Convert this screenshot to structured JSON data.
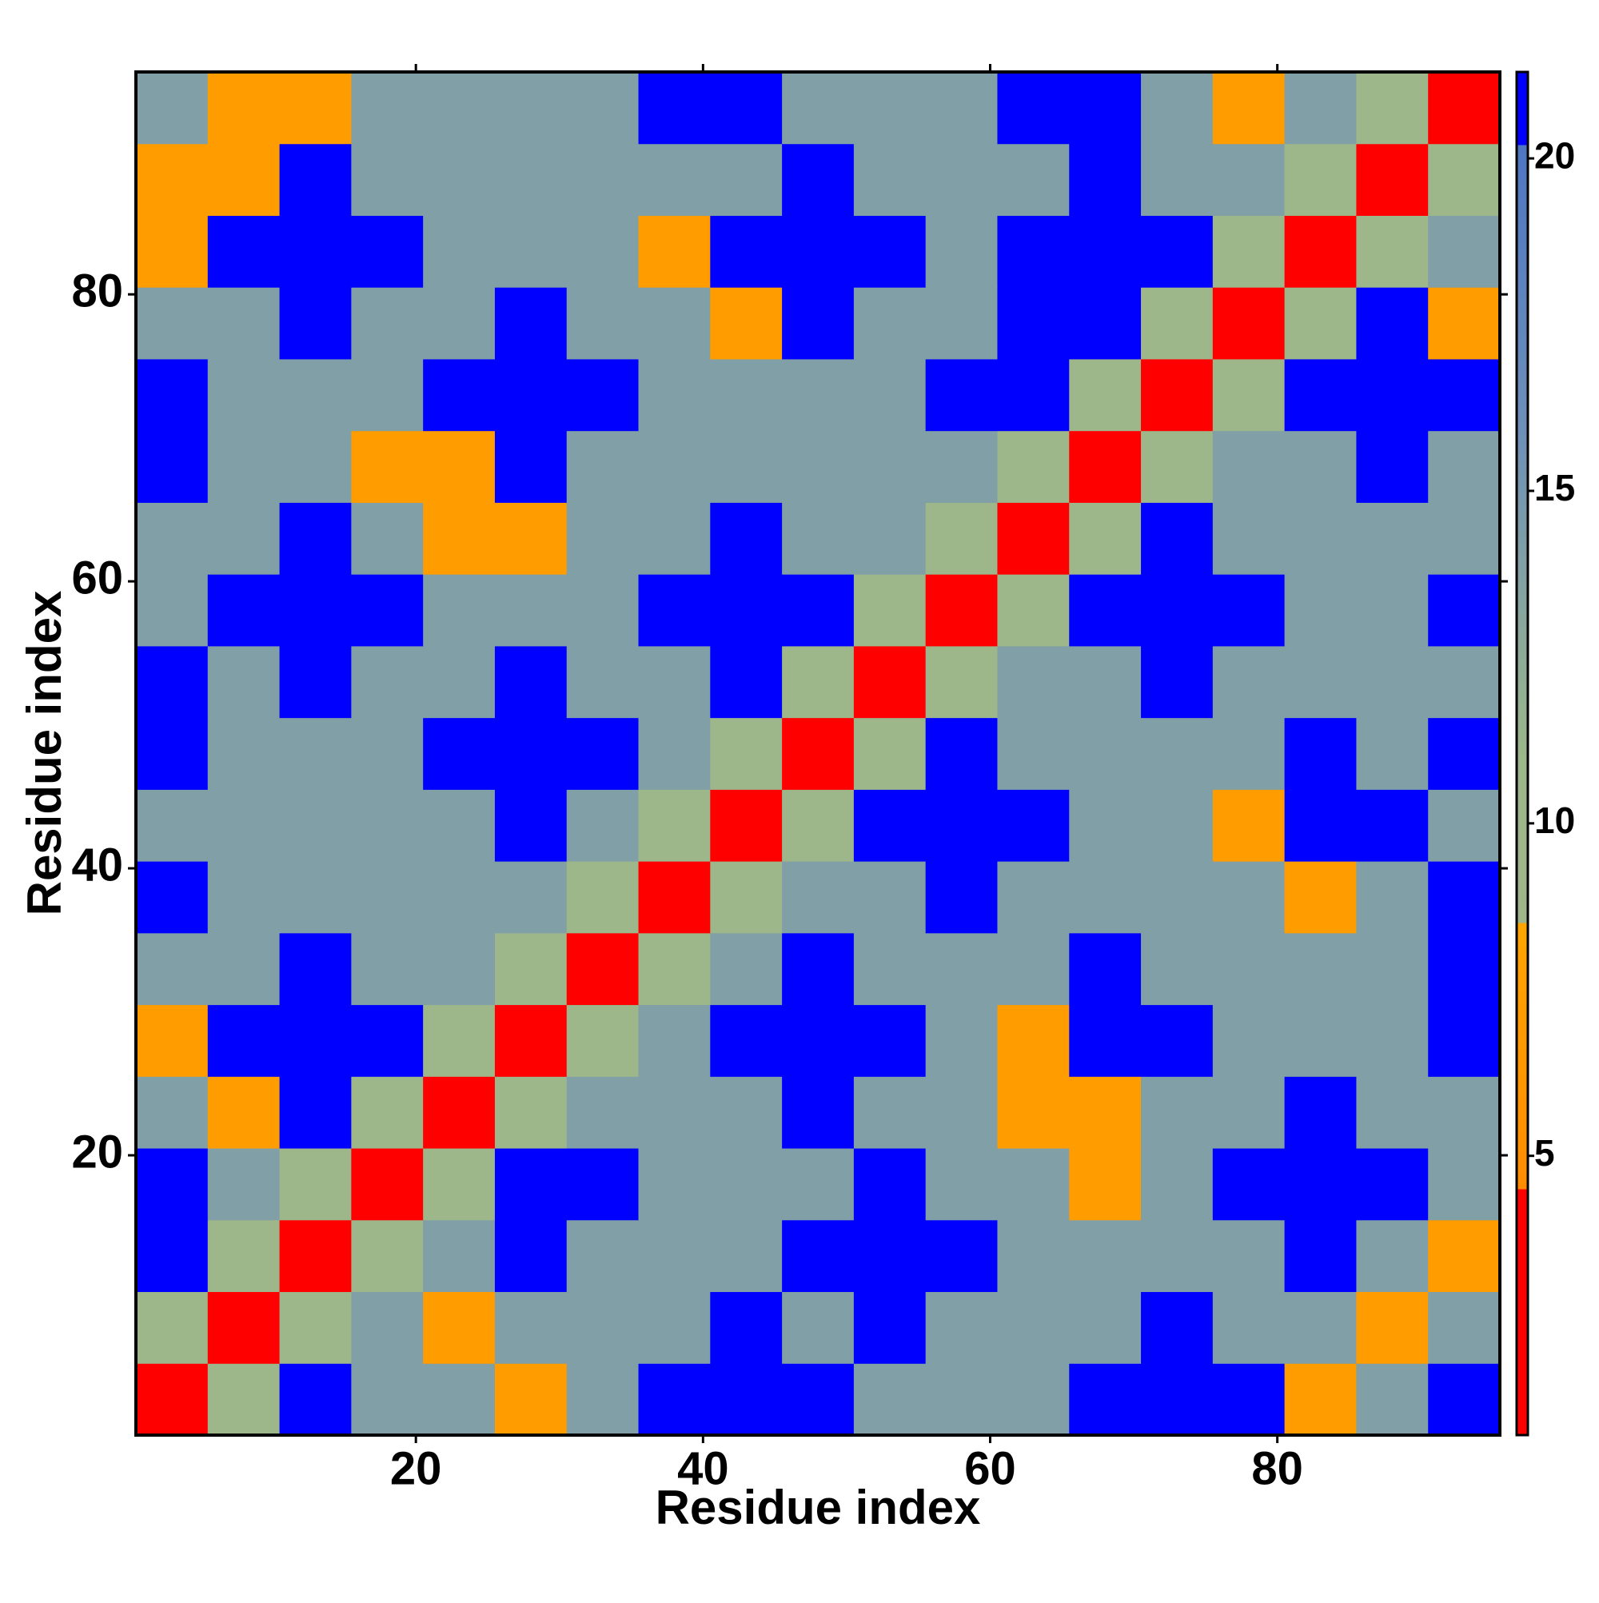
{
  "chart_data": {
    "type": "heatmap",
    "xlabel": "Residue index",
    "ylabel": "Residue index",
    "xbins": [
      0.5,
      5.5,
      10.5,
      15.5,
      20.5,
      25.5,
      30.5,
      35.5,
      40.5,
      45.5,
      50.5,
      55.5,
      60.5,
      65.5,
      70.5,
      75.5,
      80.5,
      85.5,
      90.5,
      95.5
    ],
    "ybins": [
      0.5,
      5.5,
      10.5,
      15.5,
      20.5,
      25.5,
      30.5,
      35.5,
      40.5,
      45.5,
      50.5,
      55.5,
      60.5,
      65.5,
      70.5,
      75.5,
      80.5,
      85.5,
      90.5,
      95.5
    ],
    "xlim": [
      0.5,
      95.5
    ],
    "ylim": [
      0.5,
      95.5
    ],
    "xticks": [
      20,
      40,
      60,
      80
    ],
    "yticks": [
      20,
      40,
      60,
      80
    ],
    "z": [
      [
        3,
        10,
        21,
        14,
        14,
        7,
        14,
        21,
        21,
        21,
        14,
        14,
        14,
        21,
        21,
        21,
        7,
        14,
        21
      ],
      [
        10,
        3,
        10,
        14,
        7,
        14,
        14,
        14,
        21,
        14,
        21,
        14,
        14,
        14,
        21,
        14,
        14,
        7,
        14
      ],
      [
        21,
        10,
        3,
        10,
        14,
        21,
        14,
        14,
        14,
        21,
        21,
        21,
        14,
        14,
        14,
        14,
        21,
        14,
        7
      ],
      [
        21,
        14,
        10,
        3,
        10,
        21,
        21,
        14,
        14,
        14,
        21,
        14,
        14,
        7,
        14,
        21,
        21,
        21,
        14
      ],
      [
        14,
        7,
        21,
        10,
        3,
        10,
        14,
        14,
        14,
        21,
        14,
        14,
        7,
        7,
        14,
        14,
        21,
        14,
        14
      ],
      [
        7,
        21,
        21,
        21,
        10,
        3,
        10,
        14,
        21,
        21,
        21,
        14,
        7,
        21,
        21,
        14,
        14,
        14,
        21
      ],
      [
        14,
        14,
        21,
        14,
        14,
        10,
        3,
        10,
        14,
        21,
        14,
        14,
        14,
        21,
        14,
        14,
        14,
        14,
        21
      ],
      [
        21,
        14,
        14,
        14,
        14,
        14,
        10,
        3,
        10,
        14,
        14,
        21,
        14,
        14,
        14,
        14,
        7,
        14,
        21
      ],
      [
        14,
        14,
        14,
        14,
        14,
        21,
        14,
        10,
        3,
        10,
        21,
        21,
        21,
        14,
        14,
        7,
        21,
        21,
        14
      ],
      [
        21,
        14,
        14,
        14,
        21,
        21,
        21,
        14,
        10,
        3,
        10,
        21,
        14,
        14,
        14,
        14,
        21,
        14,
        21
      ],
      [
        21,
        14,
        21,
        14,
        14,
        21,
        14,
        14,
        21,
        10,
        3,
        10,
        14,
        14,
        21,
        14,
        14,
        14,
        14
      ],
      [
        14,
        21,
        21,
        21,
        14,
        14,
        14,
        21,
        21,
        21,
        10,
        3,
        10,
        21,
        21,
        21,
        14,
        14,
        21
      ],
      [
        14,
        14,
        21,
        14,
        7,
        7,
        14,
        14,
        21,
        14,
        14,
        10,
        3,
        10,
        21,
        14,
        14,
        14,
        14
      ],
      [
        21,
        14,
        14,
        7,
        7,
        21,
        14,
        14,
        14,
        14,
        14,
        14,
        10,
        3,
        10,
        14,
        14,
        21,
        14
      ],
      [
        21,
        14,
        14,
        14,
        21,
        21,
        21,
        14,
        14,
        14,
        14,
        21,
        21,
        10,
        3,
        10,
        21,
        21,
        21
      ],
      [
        14,
        14,
        21,
        14,
        14,
        21,
        14,
        14,
        7,
        21,
        14,
        14,
        21,
        21,
        10,
        3,
        10,
        21,
        7
      ],
      [
        7,
        21,
        21,
        21,
        14,
        14,
        14,
        7,
        21,
        21,
        21,
        14,
        21,
        21,
        21,
        10,
        3,
        10,
        14
      ],
      [
        7,
        7,
        21,
        14,
        14,
        14,
        14,
        14,
        14,
        21,
        14,
        14,
        14,
        21,
        14,
        14,
        10,
        3,
        10
      ],
      [
        14,
        7,
        7,
        14,
        14,
        14,
        14,
        21,
        21,
        14,
        14,
        14,
        21,
        21,
        14,
        7,
        14,
        10,
        3
      ]
    ],
    "colorscale": [
      [
        0.8,
        "#ff0000"
      ],
      [
        4.5,
        "#ff0000"
      ],
      [
        4.5,
        "#ff8c00"
      ],
      [
        8.5,
        "#ffa500"
      ],
      [
        8.5,
        "#9fb58a"
      ],
      [
        11,
        "#9cb78a"
      ],
      [
        16,
        "#6d8fb9"
      ],
      [
        20.2,
        "#4f76c2"
      ],
      [
        20.2,
        "#0000ff"
      ],
      [
        21.3,
        "#0000ff"
      ]
    ],
    "clim": [
      0.8,
      21.3
    ],
    "cticks": [
      5,
      10,
      15,
      20
    ]
  }
}
